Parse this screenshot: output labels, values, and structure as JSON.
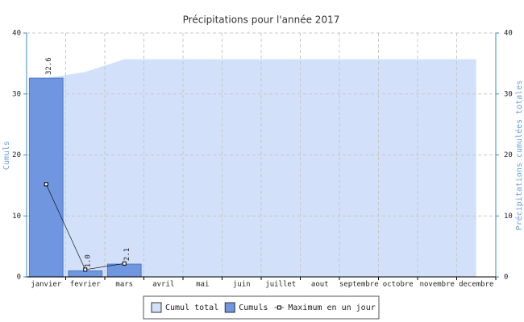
{
  "chart_data": {
    "type": "bar",
    "title": "Précipitations pour l'année 2017",
    "y_label": "Cumuls",
    "y2_label": "Précipitations cumulées totales",
    "categories": [
      "janvier",
      "fevrier",
      "mars",
      "avril",
      "mai",
      "juin",
      "juillet",
      "aout",
      "septembre",
      "octobre",
      "novembre",
      "decembre"
    ],
    "ylim": [
      0,
      40
    ],
    "yticks": [
      0,
      10,
      20,
      30,
      40
    ],
    "y2lim": [
      0,
      40
    ],
    "y2ticks": [
      0,
      10,
      20,
      30,
      40
    ],
    "grid": true,
    "legend": "bottom",
    "series": [
      {
        "name": "Cumul total",
        "type": "area",
        "axis": "y2",
        "color": "#d2e0f9",
        "values": [
          32.6,
          33.6,
          35.7,
          35.7,
          35.7,
          35.7,
          35.7,
          35.7,
          35.7,
          35.7,
          35.7,
          35.7
        ]
      },
      {
        "name": "Cumuls",
        "type": "bar",
        "color": "#6f96de",
        "values": [
          32.6,
          1,
          2.1,
          null,
          null,
          null,
          null,
          null,
          null,
          null,
          null,
          null
        ],
        "value_labels": [
          "32.6",
          "1.0",
          "2.1",
          null,
          null,
          null,
          null,
          null,
          null,
          null,
          null,
          null
        ]
      },
      {
        "name": "Maximum en un jour",
        "type": "line",
        "color": "#000000",
        "values": [
          15.2,
          1.2,
          2.2,
          null,
          null,
          null,
          null,
          null,
          null,
          null,
          null,
          null
        ]
      }
    ]
  }
}
